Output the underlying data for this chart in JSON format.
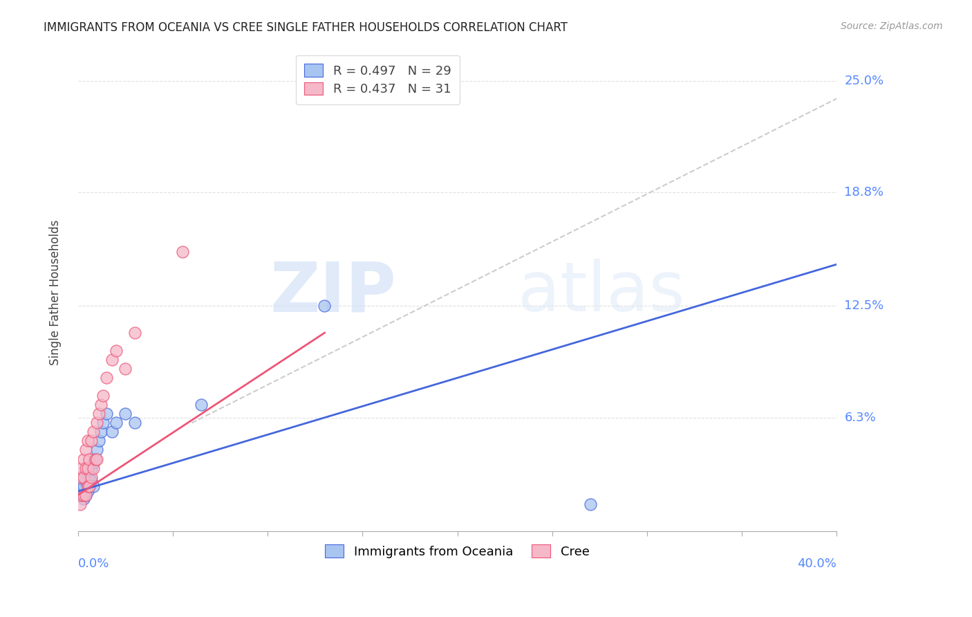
{
  "title": "IMMIGRANTS FROM OCEANIA VS CREE SINGLE FATHER HOUSEHOLDS CORRELATION CHART",
  "source": "Source: ZipAtlas.com",
  "ylabel": "Single Father Households",
  "y_ticks": [
    0.0,
    0.063,
    0.125,
    0.188,
    0.25
  ],
  "y_tick_labels": [
    "",
    "6.3%",
    "12.5%",
    "18.8%",
    "25.0%"
  ],
  "x_lim": [
    0.0,
    0.4
  ],
  "y_lim": [
    0.0,
    0.265
  ],
  "legend_label1": "Immigrants from Oceania",
  "legend_label2": "Cree",
  "watermark_zip": "ZIP",
  "watermark_atlas": "atlas",
  "blue_color": "#a8c4f0",
  "pink_color": "#f5b8c8",
  "blue_line_color": "#4466dd",
  "pink_line_color": "#ee5577",
  "gray_line_color": "#cccccc",
  "blue_scatter_edge": "#4466dd",
  "pink_scatter_edge": "#ee5577",
  "oceania_x": [
    0.001,
    0.002,
    0.002,
    0.003,
    0.003,
    0.003,
    0.004,
    0.004,
    0.005,
    0.005,
    0.006,
    0.006,
    0.007,
    0.007,
    0.008,
    0.008,
    0.009,
    0.01,
    0.011,
    0.012,
    0.013,
    0.015,
    0.018,
    0.02,
    0.025,
    0.03,
    0.065,
    0.13,
    0.27
  ],
  "oceania_y": [
    0.02,
    0.022,
    0.025,
    0.018,
    0.025,
    0.03,
    0.02,
    0.028,
    0.022,
    0.03,
    0.025,
    0.03,
    0.028,
    0.035,
    0.025,
    0.038,
    0.04,
    0.045,
    0.05,
    0.055,
    0.06,
    0.065,
    0.055,
    0.06,
    0.065,
    0.06,
    0.07,
    0.125,
    0.015
  ],
  "cree_x": [
    0.001,
    0.001,
    0.002,
    0.002,
    0.003,
    0.003,
    0.003,
    0.004,
    0.004,
    0.004,
    0.005,
    0.005,
    0.005,
    0.006,
    0.006,
    0.007,
    0.007,
    0.008,
    0.008,
    0.009,
    0.01,
    0.01,
    0.011,
    0.012,
    0.013,
    0.015,
    0.018,
    0.02,
    0.025,
    0.03,
    0.055
  ],
  "cree_y": [
    0.015,
    0.03,
    0.02,
    0.035,
    0.02,
    0.03,
    0.04,
    0.02,
    0.035,
    0.045,
    0.025,
    0.035,
    0.05,
    0.025,
    0.04,
    0.03,
    0.05,
    0.035,
    0.055,
    0.04,
    0.04,
    0.06,
    0.065,
    0.07,
    0.075,
    0.085,
    0.095,
    0.1,
    0.09,
    0.11,
    0.155
  ],
  "blue_line_x0": 0.0,
  "blue_line_y0": 0.022,
  "blue_line_x1": 0.4,
  "blue_line_y1": 0.148,
  "pink_line_x0": 0.0,
  "pink_line_y0": 0.02,
  "pink_line_x1": 0.13,
  "pink_line_y1": 0.11,
  "gray_line_x0": 0.06,
  "gray_line_y0": 0.06,
  "gray_line_x1": 0.4,
  "gray_line_y1": 0.24
}
